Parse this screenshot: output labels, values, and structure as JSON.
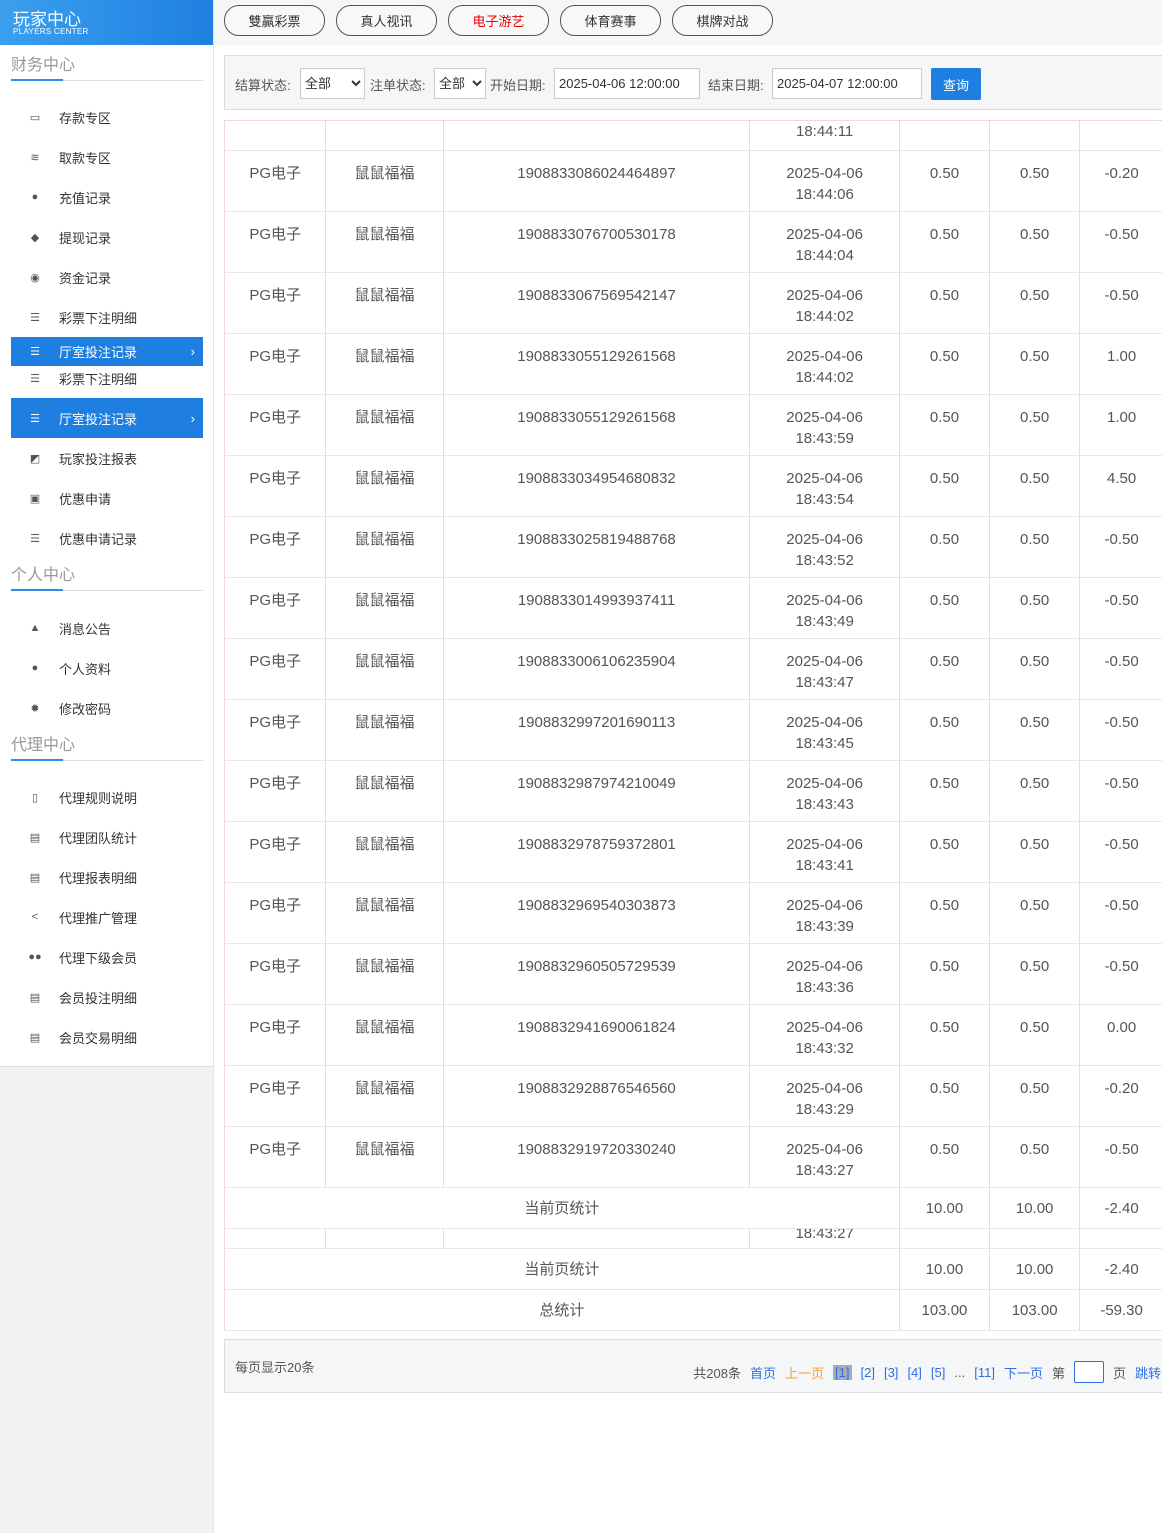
{
  "logo": {
    "title": "玩家中心",
    "subtitle": "PLAYERS CENTER"
  },
  "tabs": [
    {
      "label": "雙贏彩票",
      "color": "#333"
    },
    {
      "label": "真人视讯",
      "color": "#333"
    },
    {
      "label": "电子游艺",
      "color": "#e00"
    },
    {
      "label": "体育赛事",
      "color": "#333"
    },
    {
      "label": "棋牌对战",
      "color": "#333"
    }
  ],
  "sidebar": {
    "sections": [
      {
        "title": "财务中心"
      },
      {
        "title": "个人中心"
      },
      {
        "title": "代理中心"
      }
    ],
    "items": [
      {
        "label": "存款专区",
        "icon": "card-icon"
      },
      {
        "label": "取款专区",
        "icon": "cash-icon"
      },
      {
        "label": "充值记录",
        "icon": "money-bag-icon"
      },
      {
        "label": "提现记录",
        "icon": "wallet-icon"
      },
      {
        "label": "资金记录",
        "icon": "piggy-icon"
      },
      {
        "label": "彩票下注明细",
        "icon": "list-icon"
      },
      {
        "label": "厅室投注记录",
        "icon": "list-icon",
        "active": true
      },
      {
        "label": "彩票下注明细",
        "icon": "list-icon"
      },
      {
        "label": "厅室投注记录",
        "icon": "list-icon",
        "active": true
      },
      {
        "label": "玩家投注报表",
        "icon": "chart-icon"
      },
      {
        "label": "优惠申请",
        "icon": "gift-icon"
      },
      {
        "label": "优惠申请记录",
        "icon": "list-icon"
      },
      {
        "label": "消息公告",
        "icon": "bell-icon"
      },
      {
        "label": "个人资料",
        "icon": "user-icon"
      },
      {
        "label": "修改密码",
        "icon": "gear-icon"
      },
      {
        "label": "代理规则说明",
        "icon": "file-icon"
      },
      {
        "label": "代理团队统计",
        "icon": "book-icon"
      },
      {
        "label": "代理报表明细",
        "icon": "book-icon"
      },
      {
        "label": "代理推广管理",
        "icon": "share-icon"
      },
      {
        "label": "代理下级会员",
        "icon": "users-icon"
      },
      {
        "label": "会员投注明细",
        "icon": "doc-icon"
      },
      {
        "label": "会员交易明细",
        "icon": "doc-icon"
      }
    ]
  },
  "filter": {
    "settle_label": "结算状态:",
    "settle_value": "全部",
    "order_label": "注单状态:",
    "order_value": "全部",
    "start_label": "开始日期:",
    "start_value": "2025-04-06 12:00:00",
    "end_label": "结束日期:",
    "end_value": "2025-04-07 12:00:00",
    "query": "查询"
  },
  "table": {
    "partial_top": "18:44:11",
    "rows": [
      [
        "PG电子",
        "鼠鼠福福",
        "1908833086024464897",
        "2025-04-06",
        "18:44:06",
        "0.50",
        "0.50",
        "-0.20"
      ],
      [
        "PG电子",
        "鼠鼠福福",
        "1908833076700530178",
        "2025-04-06",
        "18:44:04",
        "0.50",
        "0.50",
        "-0.50"
      ],
      [
        "PG电子",
        "鼠鼠福福",
        "1908833067569542147",
        "2025-04-06",
        "18:44:02",
        "0.50",
        "0.50",
        "-0.50"
      ],
      [
        "PG电子",
        "鼠鼠福福",
        "1908833055129261568",
        "2025-04-06",
        "18:44:02",
        "0.50",
        "0.50",
        "1.00"
      ],
      [
        "PG电子",
        "鼠鼠福福",
        "1908833055129261568",
        "2025-04-06",
        "18:43:59",
        "0.50",
        "0.50",
        "1.00"
      ],
      [
        "PG电子",
        "鼠鼠福福",
        "1908833034954680832",
        "2025-04-06",
        "18:43:54",
        "0.50",
        "0.50",
        "4.50"
      ],
      [
        "PG电子",
        "鼠鼠福福",
        "1908833025819488768",
        "2025-04-06",
        "18:43:52",
        "0.50",
        "0.50",
        "-0.50"
      ],
      [
        "PG电子",
        "鼠鼠福福",
        "1908833014993937411",
        "2025-04-06",
        "18:43:49",
        "0.50",
        "0.50",
        "-0.50"
      ],
      [
        "PG电子",
        "鼠鼠福福",
        "1908833006106235904",
        "2025-04-06",
        "18:43:47",
        "0.50",
        "0.50",
        "-0.50"
      ],
      [
        "PG电子",
        "鼠鼠福福",
        "1908832997201690113",
        "2025-04-06",
        "18:43:45",
        "0.50",
        "0.50",
        "-0.50"
      ],
      [
        "PG电子",
        "鼠鼠福福",
        "1908832987974210049",
        "2025-04-06",
        "18:43:43",
        "0.50",
        "0.50",
        "-0.50"
      ],
      [
        "PG电子",
        "鼠鼠福福",
        "1908832978759372801",
        "2025-04-06",
        "18:43:41",
        "0.50",
        "0.50",
        "-0.50"
      ],
      [
        "PG电子",
        "鼠鼠福福",
        "1908832969540303873",
        "2025-04-06",
        "18:43:39",
        "0.50",
        "0.50",
        "-0.50"
      ],
      [
        "PG电子",
        "鼠鼠福福",
        "1908832960505729539",
        "2025-04-06",
        "18:43:36",
        "0.50",
        "0.50",
        "-0.50"
      ],
      [
        "PG电子",
        "鼠鼠福福",
        "1908832941690061824",
        "2025-04-06",
        "18:43:32",
        "0.50",
        "0.50",
        "0.00"
      ],
      [
        "PG电子",
        "鼠鼠福福",
        "1908832928876546560",
        "2025-04-06",
        "18:43:29",
        "0.50",
        "0.50",
        "-0.20"
      ],
      [
        "PG电子",
        "鼠鼠福福",
        "1908832919720330240",
        "2025-04-06",
        "18:43:27",
        "0.50",
        "0.50",
        "-0.50"
      ]
    ],
    "page_sum": {
      "label": "当前页统计",
      "v1": "10.00",
      "v2": "10.00",
      "v3": "-2.40"
    },
    "partial_mid": "18:43:27",
    "page_sum2": {
      "label": "当前页统计",
      "v1": "10.00",
      "v2": "10.00",
      "v3": "-2.40"
    },
    "total": {
      "label": "总统计",
      "v1": "103.00",
      "v2": "103.00",
      "v3": "-59.30"
    }
  },
  "pager": {
    "per_page": "每页显示20条",
    "total": "共208条",
    "first": "首页",
    "prev": "上一页",
    "pages": [
      "[1]",
      "[2]",
      "[3]",
      "[4]",
      "[5]"
    ],
    "ellipsis": "...",
    "last_page": "[11]",
    "next": "下一页",
    "goto_prefix": "第",
    "goto_suffix": "页",
    "jump": "跳转"
  }
}
